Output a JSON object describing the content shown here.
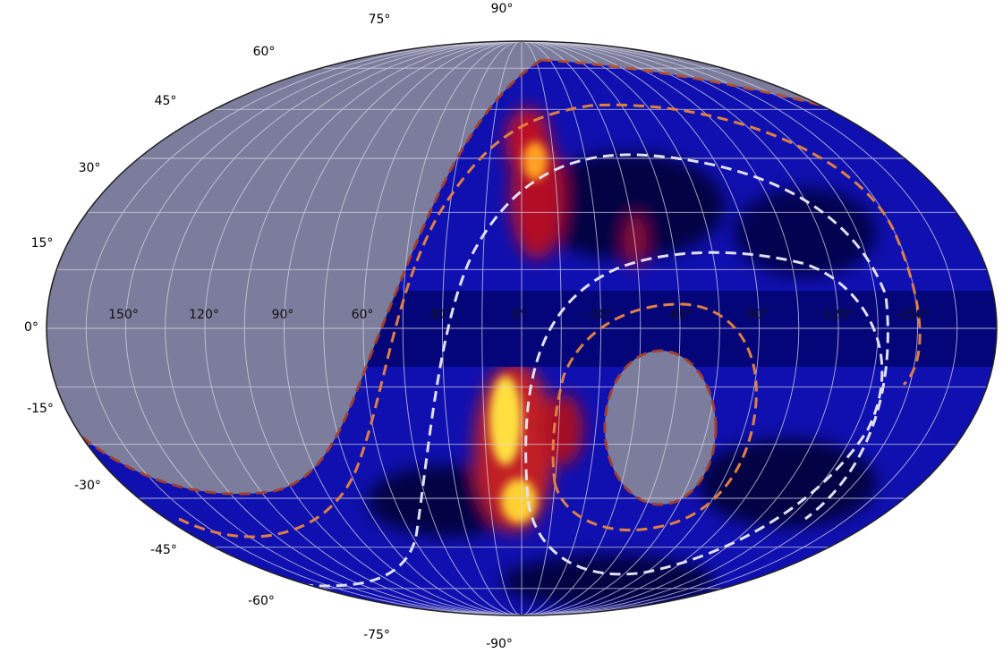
{
  "latitude_labels": [
    "90°",
    "75°",
    "60°",
    "45°",
    "30°",
    "15°",
    "0°",
    "-15°",
    "-30°",
    "-45°",
    "-60°",
    "-75°",
    "-90°"
  ],
  "longitude_labels": [
    "150°",
    "120°",
    "90°",
    "60°",
    "30°",
    "0°",
    "-30°",
    "-60°",
    "-90°",
    "-120°",
    "-150°"
  ]
}
